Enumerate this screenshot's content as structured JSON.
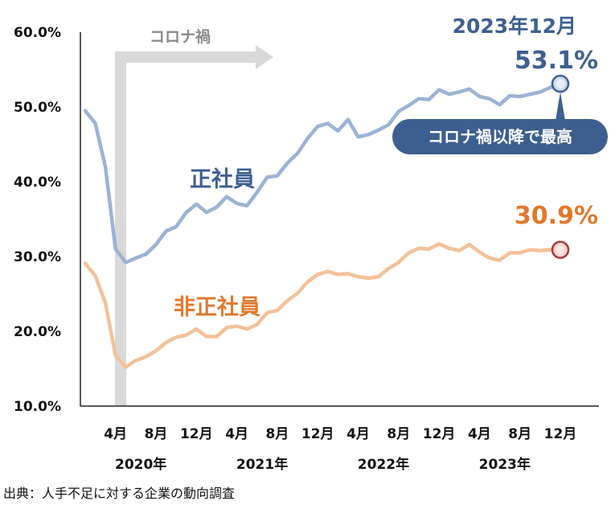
{
  "chart_data": {
    "type": "line",
    "categories": [
      "2020-01",
      "2020-02",
      "2020-03",
      "2020-04",
      "2020-05",
      "2020-06",
      "2020-07",
      "2020-08",
      "2020-09",
      "2020-10",
      "2020-11",
      "2020-12",
      "2021-01",
      "2021-02",
      "2021-03",
      "2021-04",
      "2021-05",
      "2021-06",
      "2021-07",
      "2021-08",
      "2021-09",
      "2021-10",
      "2021-11",
      "2021-12",
      "2022-01",
      "2022-02",
      "2022-03",
      "2022-04",
      "2022-05",
      "2022-06",
      "2022-07",
      "2022-08",
      "2022-09",
      "2022-10",
      "2022-11",
      "2022-12",
      "2023-01",
      "2023-02",
      "2023-03",
      "2023-04",
      "2023-05",
      "2023-06",
      "2023-07",
      "2023-08",
      "2023-09",
      "2023-10",
      "2023-11",
      "2023-12"
    ],
    "series": [
      {
        "name": "正社員",
        "color": "#9bb3d4",
        "label_color": "#3d5f8f",
        "values": [
          49.5,
          47.8,
          42.0,
          31.0,
          29.2,
          29.8,
          30.3,
          31.6,
          33.4,
          34.0,
          35.9,
          37.0,
          35.9,
          36.6,
          38.0,
          37.1,
          36.8,
          38.6,
          40.6,
          40.8,
          42.5,
          43.8,
          45.8,
          47.4,
          47.8,
          46.8,
          48.3,
          46.0,
          46.3,
          46.9,
          47.6,
          49.4,
          50.2,
          51.1,
          51.0,
          52.3,
          51.7,
          52.0,
          52.4,
          51.4,
          51.1,
          50.3,
          51.5,
          51.4,
          51.7,
          52.0,
          52.6,
          53.1
        ]
      },
      {
        "name": "非正社員",
        "color": "#f4c198",
        "label_color": "#e2782a",
        "values": [
          29.1,
          27.4,
          23.8,
          16.8,
          15.2,
          16.1,
          16.6,
          17.4,
          18.5,
          19.2,
          19.5,
          20.3,
          19.3,
          19.3,
          20.5,
          20.7,
          20.3,
          20.9,
          22.5,
          22.8,
          24.1,
          25.1,
          26.6,
          27.6,
          28.0,
          27.6,
          27.7,
          27.3,
          27.1,
          27.3,
          28.4,
          29.2,
          30.5,
          31.1,
          31.0,
          31.7,
          31.1,
          30.8,
          31.6,
          30.6,
          29.8,
          29.5,
          30.5,
          30.5,
          30.9,
          30.8,
          30.9,
          30.9
        ]
      }
    ],
    "x_ticks": [
      {
        "index": 3,
        "label": "4月"
      },
      {
        "index": 7,
        "label": "8月"
      },
      {
        "index": 11,
        "label": "12月"
      },
      {
        "index": 15,
        "label": "4月"
      },
      {
        "index": 19,
        "label": "8月"
      },
      {
        "index": 23,
        "label": "12月"
      },
      {
        "index": 27,
        "label": "4月"
      },
      {
        "index": 31,
        "label": "8月"
      },
      {
        "index": 35,
        "label": "12月"
      },
      {
        "index": 39,
        "label": "4月"
      },
      {
        "index": 43,
        "label": "8月"
      },
      {
        "index": 47,
        "label": "12月"
      }
    ],
    "year_labels": [
      {
        "index": 5.5,
        "label": "2020年"
      },
      {
        "index": 17.5,
        "label": "2021年"
      },
      {
        "index": 29.5,
        "label": "2022年"
      },
      {
        "index": 41.5,
        "label": "2023年"
      }
    ],
    "y_ticks": [
      "10.0%",
      "20.0%",
      "30.0%",
      "40.0%",
      "50.0%",
      "60.0%"
    ],
    "ylim": [
      10,
      60
    ],
    "annotations": {
      "corona_label": "コロナ禍",
      "corona_start_index": 3.5,
      "seishain_endpoint_date": "2023年12月",
      "seishain_endpoint_value": "53.1%",
      "hiseishain_endpoint_value": "30.9%",
      "callout": "コロナ禍以降で最高"
    },
    "colors": {
      "corona_band": "#d9d9d9",
      "callout_bg": "#3d5f8f",
      "axis": "#222222"
    }
  },
  "source": "出典：人手不足に対する企業の動向調査"
}
